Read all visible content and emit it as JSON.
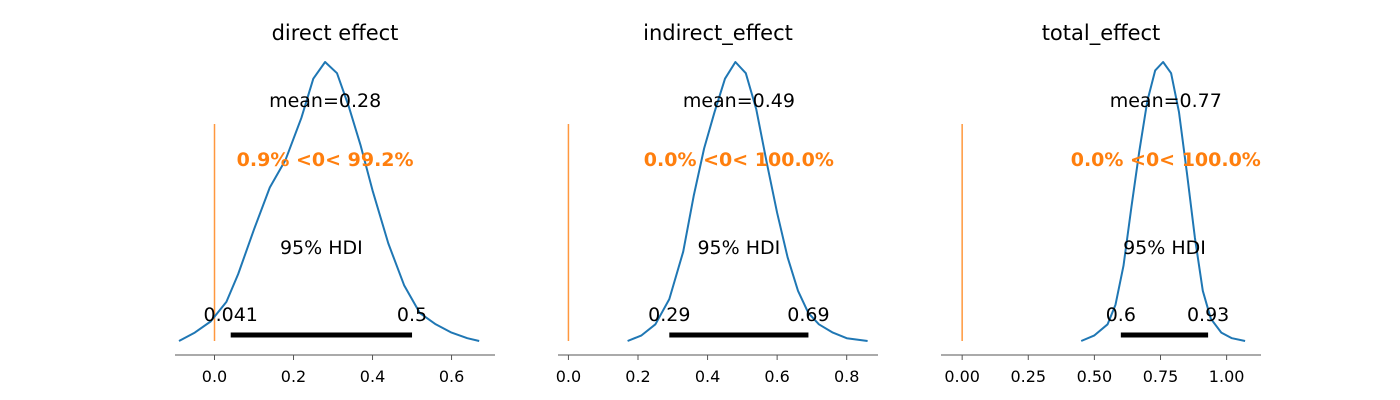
{
  "chart_data": [
    {
      "type": "area",
      "title": "direct effect",
      "xlim": [
        -0.1,
        0.71
      ],
      "xticks": [
        0.0,
        0.2,
        0.4,
        0.6
      ],
      "xtick_labels": [
        "0.0",
        "0.2",
        "0.4",
        "0.6"
      ],
      "mean_label": "mean=0.28",
      "mean_value": 0.28,
      "hdi_label": "95% HDI",
      "hdi": [
        0.041,
        0.5
      ],
      "hdi_labels": [
        "0.041",
        "0.5"
      ],
      "ref_value": 0.0,
      "ref_text": "0.9% <0< 99.2%",
      "kde": {
        "x": [
          -0.09,
          -0.05,
          -0.01,
          0.03,
          0.06,
          0.1,
          0.14,
          0.18,
          0.22,
          0.25,
          0.28,
          0.31,
          0.34,
          0.37,
          0.4,
          0.44,
          0.48,
          0.52,
          0.56,
          0.6,
          0.64,
          0.67
        ],
        "y": [
          0.0,
          0.03,
          0.07,
          0.14,
          0.24,
          0.4,
          0.55,
          0.65,
          0.8,
          0.94,
          1.0,
          0.96,
          0.84,
          0.7,
          0.54,
          0.35,
          0.2,
          0.1,
          0.06,
          0.03,
          0.01,
          0.0
        ]
      }
    },
    {
      "type": "area",
      "title": "indirect_effect",
      "xlim": [
        -0.03,
        0.89
      ],
      "xticks": [
        0.0,
        0.2,
        0.4,
        0.6,
        0.8
      ],
      "xtick_labels": [
        "0.0",
        "0.2",
        "0.4",
        "0.6",
        "0.8"
      ],
      "mean_label": "mean=0.49",
      "mean_value": 0.49,
      "hdi_label": "95% HDI",
      "hdi": [
        0.29,
        0.69
      ],
      "hdi_labels": [
        "0.29",
        "0.69"
      ],
      "ref_value": 0.0,
      "ref_text": "0.0% <0< 100.0%",
      "kde": {
        "x": [
          0.17,
          0.21,
          0.25,
          0.29,
          0.33,
          0.36,
          0.39,
          0.42,
          0.45,
          0.48,
          0.51,
          0.54,
          0.57,
          0.6,
          0.63,
          0.66,
          0.69,
          0.72,
          0.76,
          0.8,
          0.86
        ],
        "y": [
          0.0,
          0.02,
          0.06,
          0.15,
          0.32,
          0.52,
          0.69,
          0.82,
          0.94,
          1.0,
          0.96,
          0.83,
          0.64,
          0.46,
          0.3,
          0.18,
          0.1,
          0.06,
          0.03,
          0.01,
          0.0
        ]
      }
    },
    {
      "type": "area",
      "title": "total_effect",
      "xlim": [
        -0.08,
        1.13
      ],
      "xticks": [
        0.0,
        0.25,
        0.5,
        0.75,
        1.0
      ],
      "xtick_labels": [
        "0.00",
        "0.25",
        "0.50",
        "0.75",
        "1.00"
      ],
      "mean_label": "mean=0.77",
      "mean_value": 0.77,
      "hdi_label": "95% HDI",
      "hdi": [
        0.6,
        0.93
      ],
      "hdi_labels": [
        "0.6",
        "0.93"
      ],
      "ref_value": 0.0,
      "ref_text": "0.0% <0< 100.0%",
      "kde": {
        "x": [
          0.45,
          0.5,
          0.55,
          0.58,
          0.61,
          0.64,
          0.67,
          0.7,
          0.73,
          0.76,
          0.79,
          0.82,
          0.85,
          0.88,
          0.91,
          0.94,
          0.98,
          1.02,
          1.07
        ],
        "y": [
          0.0,
          0.02,
          0.06,
          0.13,
          0.27,
          0.48,
          0.68,
          0.86,
          0.97,
          1.0,
          0.96,
          0.82,
          0.6,
          0.37,
          0.18,
          0.08,
          0.03,
          0.01,
          0.0
        ]
      }
    }
  ],
  "colors": {
    "kde_line": "#1f77b4",
    "reference": "#ff7f0e",
    "hdi_bar": "#000000",
    "axis": "#555555",
    "text": "#000000"
  }
}
